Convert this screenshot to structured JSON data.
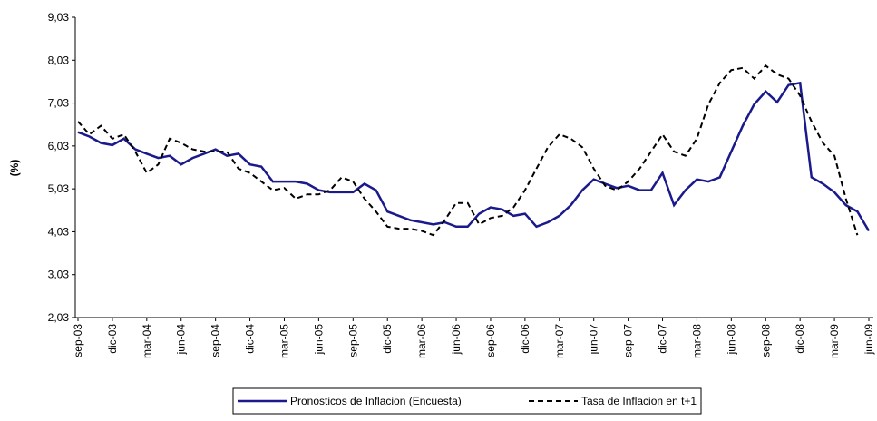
{
  "chart_data": {
    "type": "line",
    "y_label": "(%)",
    "categories": [
      "sep-03",
      null,
      null,
      "dic-03",
      null,
      null,
      "mar-04",
      null,
      null,
      "jun-04",
      null,
      null,
      "sep-04",
      null,
      null,
      "dic-04",
      null,
      null,
      "mar-05",
      null,
      null,
      "jun-05",
      null,
      null,
      "sep-05",
      null,
      null,
      "dic-05",
      null,
      null,
      "mar-06",
      null,
      null,
      "jun-06",
      null,
      null,
      "sep-06",
      null,
      null,
      "dic-06",
      null,
      null,
      "mar-07",
      null,
      null,
      "jun-07",
      null,
      null,
      "sep-07",
      null,
      null,
      "dic-07",
      null,
      null,
      "mar-08",
      null,
      null,
      "jun-08",
      null,
      null,
      "sep-08",
      null,
      null,
      "dic-08",
      null,
      null,
      "mar-09",
      null,
      null,
      "jun-09"
    ],
    "series": [
      {
        "name": "Pronosticos de Inflacion (Encuesta)",
        "color": "#1a1a8c",
        "dash": false,
        "values": [
          6.35,
          6.25,
          6.1,
          6.05,
          6.2,
          5.95,
          5.85,
          5.75,
          5.8,
          5.6,
          5.75,
          5.85,
          5.95,
          5.8,
          5.85,
          5.6,
          5.55,
          5.2,
          5.2,
          5.2,
          5.15,
          5.0,
          4.95,
          4.95,
          4.95,
          5.15,
          5.0,
          4.5,
          4.4,
          4.3,
          4.25,
          4.2,
          4.25,
          4.15,
          4.15,
          4.45,
          4.6,
          4.55,
          4.4,
          4.45,
          4.15,
          4.25,
          4.4,
          4.65,
          5.0,
          5.25,
          5.15,
          5.05,
          5.1,
          5.0,
          5.0,
          5.4,
          4.65,
          5.0,
          5.25,
          5.2,
          5.3,
          5.9,
          6.5,
          7.0,
          7.3,
          7.05,
          7.45,
          7.5,
          5.3,
          5.15,
          4.95,
          4.65,
          4.5,
          4.05
        ]
      },
      {
        "name": "Tasa de Inflacion en t+1",
        "color": "#000000",
        "dash": true,
        "values": [
          6.6,
          6.3,
          6.5,
          6.2,
          6.3,
          5.9,
          5.4,
          5.6,
          6.2,
          6.1,
          5.95,
          5.9,
          5.9,
          5.9,
          5.5,
          5.4,
          5.2,
          5.0,
          5.05,
          4.8,
          4.9,
          4.9,
          5.0,
          5.3,
          5.2,
          4.8,
          4.5,
          4.15,
          4.1,
          4.1,
          4.05,
          3.95,
          4.3,
          4.7,
          4.7,
          4.2,
          4.35,
          4.4,
          4.6,
          5.0,
          5.5,
          6.0,
          6.3,
          6.2,
          6.0,
          5.5,
          5.1,
          5.0,
          5.2,
          5.5,
          5.9,
          6.3,
          5.9,
          5.8,
          6.2,
          7.0,
          7.5,
          7.8,
          7.85,
          7.6,
          7.9,
          7.7,
          7.6,
          7.2,
          6.6,
          6.1,
          5.8,
          4.8,
          3.95,
          null
        ]
      }
    ],
    "ylim": [
      2.03,
      9.03
    ],
    "yticks": [
      {
        "value": 2.03,
        "label": "2,03"
      },
      {
        "value": 3.03,
        "label": "3,03"
      },
      {
        "value": 4.03,
        "label": "4,03"
      },
      {
        "value": 5.03,
        "label": "5,03"
      },
      {
        "value": 6.03,
        "label": "6,03"
      },
      {
        "value": 7.03,
        "label": "7,03"
      },
      {
        "value": 8.03,
        "label": "8,03"
      },
      {
        "value": 9.03,
        "label": "9,03"
      }
    ],
    "grid": false,
    "legend": "bottom"
  }
}
